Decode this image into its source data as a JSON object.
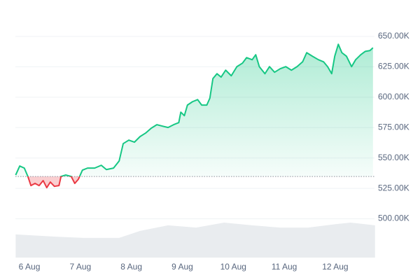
{
  "chart_data": {
    "type": "line",
    "x": [
      5.73,
      5.81,
      5.9,
      5.97,
      6.03,
      6.11,
      6.19,
      6.27,
      6.34,
      6.41,
      6.49,
      6.58,
      6.62,
      6.71,
      6.82,
      6.89,
      6.96,
      7.04,
      7.14,
      7.28,
      7.41,
      7.51,
      7.65,
      7.76,
      7.84,
      7.95,
      8.06,
      8.17,
      8.28,
      8.39,
      8.5,
      8.61,
      8.72,
      8.83,
      8.93,
      8.97,
      9.04,
      9.1,
      9.2,
      9.3,
      9.38,
      9.48,
      9.54,
      9.6,
      9.68,
      9.76,
      9.85,
      9.96,
      10.07,
      10.18,
      10.26,
      10.37,
      10.44,
      10.51,
      10.62,
      10.71,
      10.81,
      10.92,
      11.03,
      11.14,
      11.25,
      11.36,
      11.44,
      11.55,
      11.67,
      11.77,
      11.85,
      11.93,
      11.99,
      12.06,
      12.13,
      12.22,
      12.32,
      12.4,
      12.5,
      12.59,
      12.68,
      12.74
    ],
    "series": [
      {
        "color": "#16c784",
        "below_color": "#ea3943",
        "values": [
          536.0,
          543.4,
          541.7,
          534.8,
          527.3,
          529.1,
          527.3,
          531.4,
          525.6,
          530.2,
          526.7,
          527.3,
          534.8,
          536.0,
          534.8,
          529.1,
          532.5,
          540.0,
          541.7,
          541.7,
          544.0,
          540.5,
          541.7,
          547.5,
          561.8,
          564.7,
          563.0,
          567.6,
          570.5,
          574.5,
          577.4,
          576.2,
          575.1,
          577.4,
          579.1,
          587.7,
          584.8,
          593.5,
          596.3,
          598.0,
          593.5,
          593.5,
          599.2,
          615.3,
          619.3,
          616.5,
          622.2,
          617.6,
          625.1,
          628.0,
          632.5,
          630.8,
          634.9,
          625.1,
          619.3,
          625.1,
          620.5,
          623.4,
          625.1,
          622.2,
          625.1,
          629.1,
          636.6,
          633.7,
          630.8,
          629.1,
          625.1,
          619.3,
          633.7,
          643.5,
          636.6,
          633.7,
          625.1,
          630.8,
          634.9,
          637.7,
          638.3,
          640.6
        ]
      }
    ],
    "baseline": 534.8,
    "volume": {
      "color": "#e9ecef",
      "x": [
        5.73,
        6.52,
        7.07,
        7.76,
        8.17,
        8.72,
        9.27,
        9.82,
        10.37,
        10.92,
        11.47,
        12.02,
        12.3,
        12.78
      ],
      "values": [
        9.2,
        8.3,
        7.8,
        7.8,
        10.6,
        12.8,
        11.9,
        13.9,
        12.8,
        11.9,
        11.9,
        13.3,
        13.9,
        12.8
      ]
    },
    "y2lim": [
      0,
      100
    ],
    "xlim": [
      5.725,
      12.77
    ],
    "xticks": [
      {
        "value": 6,
        "label": "6 Aug"
      },
      {
        "value": 7,
        "label": "7 Aug"
      },
      {
        "value": 8,
        "label": "8 Aug"
      },
      {
        "value": 9,
        "label": "9 Aug"
      },
      {
        "value": 10,
        "label": "10 Aug"
      },
      {
        "value": 11,
        "label": "11 Aug"
      },
      {
        "value": 12,
        "label": "12 Aug"
      }
    ],
    "ylim": [
      468.1,
      675.3
    ],
    "yticks": [
      {
        "value": 650,
        "label": "650.00K"
      },
      {
        "value": 625,
        "label": "625.00K"
      },
      {
        "value": 600,
        "label": "600.00K"
      },
      {
        "value": 575,
        "label": "575.00K"
      },
      {
        "value": 550,
        "label": "550.00K"
      },
      {
        "value": 525,
        "label": "525.00K"
      },
      {
        "value": 500,
        "label": "500.00K"
      }
    ],
    "grid": true
  }
}
